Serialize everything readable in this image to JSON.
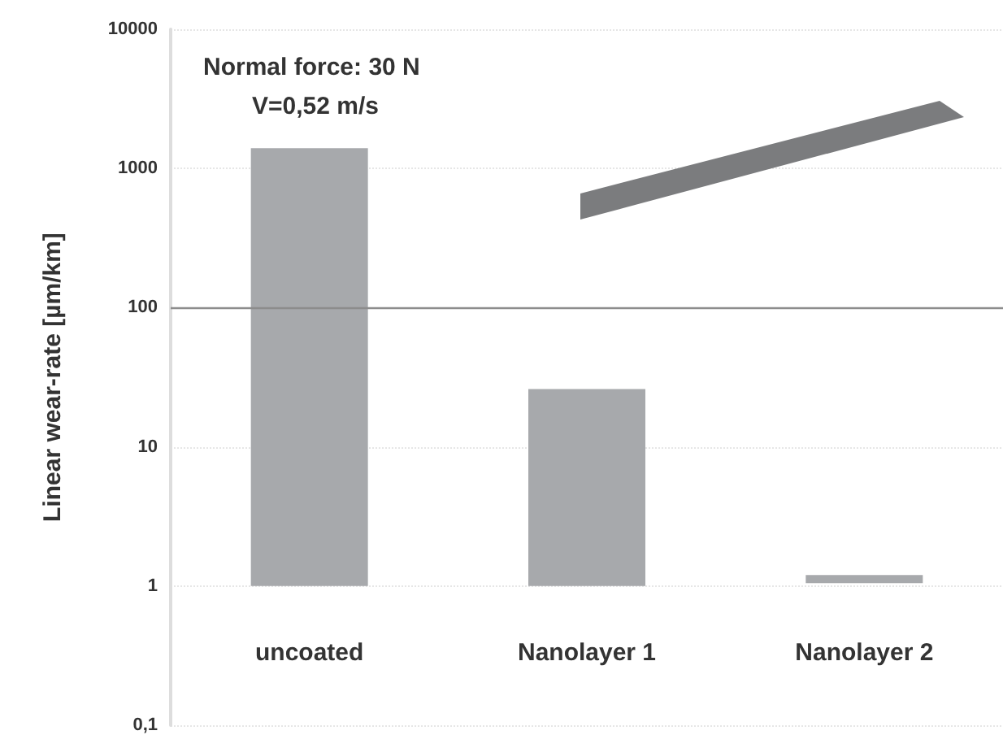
{
  "chart_data": {
    "type": "bar",
    "ylabel": "Linear wear-rate [µm/km]",
    "categories": [
      "uncoated",
      "Nanolayer 1",
      "Nanolayer 2"
    ],
    "values": [
      1400,
      25,
      0.15
    ],
    "base": [
      1,
      1,
      1.05
    ],
    "colors": [
      "#a7a9ac",
      "#a7a9ac",
      "#a7a9ac"
    ],
    "log": true,
    "ylim": [
      0.1,
      10000
    ],
    "yticks": [
      {
        "value": 0.1,
        "label": "0,1"
      },
      1,
      10,
      100,
      1000,
      10000
    ],
    "grid": "y",
    "ref_lines": [
      {
        "axis": "y",
        "value": 100,
        "color": "#8c8c8c"
      }
    ],
    "annotations": [
      "Normal force: 30 N",
      "V=0,52 m/s"
    ]
  }
}
